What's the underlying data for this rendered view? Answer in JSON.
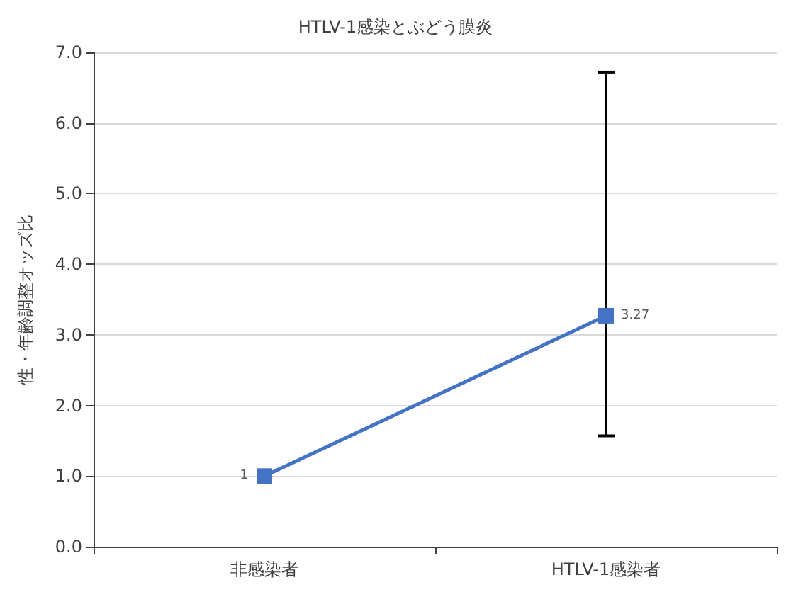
{
  "chart_data": {
    "type": "line",
    "title": "HTLV-1感染とぶどう膜炎",
    "ylabel": "性・年齢調整オッズ比",
    "categories": [
      "非感染者",
      "HTLV-1感染者"
    ],
    "series": [
      {
        "color": "#4472c4",
        "values": [
          1,
          3.27
        ],
        "errors": [
          null,
          [
            1.57,
            6.72
          ]
        ],
        "value_labels": [
          "1",
          "3.27"
        ]
      }
    ],
    "ylim": [
      0,
      7
    ],
    "yticks": [
      {
        "value": 0,
        "label": "0.0"
      },
      {
        "value": 1,
        "label": "1.0"
      },
      {
        "value": 2,
        "label": "2.0"
      },
      {
        "value": 3,
        "label": "3.0"
      },
      {
        "value": 4,
        "label": "4.0"
      },
      {
        "value": 5,
        "label": "5.0"
      },
      {
        "value": 6,
        "label": "6.0"
      },
      {
        "value": 7,
        "label": "7.0"
      }
    ],
    "grid": "y",
    "marker": "square",
    "line_style": "solid"
  }
}
